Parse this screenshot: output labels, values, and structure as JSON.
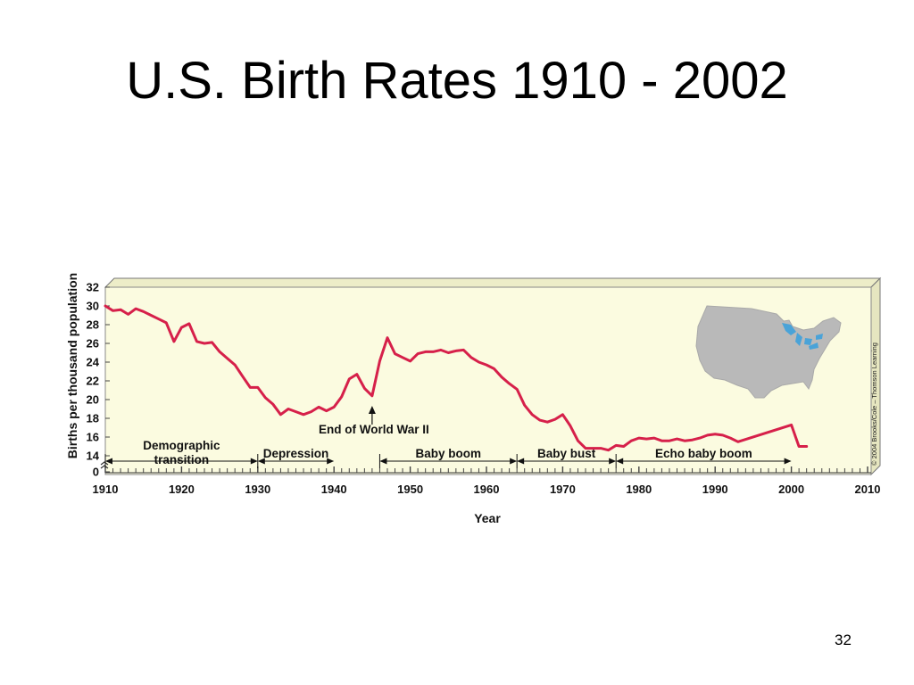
{
  "slide": {
    "title": "U.S. Birth Rates 1910 - 2002",
    "page_number": "32"
  },
  "credit": "© 2004 Brooks/Cole – Thomson Learning",
  "map_icon": "usa-map-icon",
  "colors": {
    "line": "#d6204a",
    "plot_background": "#fbfbe0",
    "map": "#b9b9b9",
    "lakes": "#4aa3d8"
  },
  "chart_data": {
    "type": "line",
    "title": "",
    "xlabel": "Year",
    "ylabel": "Births per thousand population",
    "xlim": [
      1910,
      2010
    ],
    "ylim": [
      0,
      32
    ],
    "y_axis_note": "broken axis between 0 and 14",
    "x_ticks": [
      "1910",
      "1920",
      "1930",
      "1940",
      "1950",
      "1960",
      "1970",
      "1980",
      "1990",
      "2000",
      "2010"
    ],
    "y_ticks": [
      "0",
      "14",
      "16",
      "18",
      "20",
      "22",
      "24",
      "26",
      "28",
      "30",
      "32"
    ],
    "grid": false,
    "series": [
      {
        "x": [
          1910,
          1911,
          1912,
          1913,
          1914,
          1915,
          1916,
          1917,
          1918,
          1919,
          1920,
          1921,
          1922,
          1923,
          1924,
          1925,
          1926,
          1927,
          1928,
          1929,
          1930,
          1931,
          1932,
          1933,
          1934,
          1935,
          1936,
          1937,
          1938,
          1939,
          1940,
          1941,
          1942,
          1943,
          1944,
          1945,
          1946,
          1947,
          1948,
          1949,
          1950,
          1951,
          1952,
          1953,
          1954,
          1955,
          1956,
          1957,
          1958,
          1959,
          1960,
          1961,
          1962,
          1963,
          1964,
          1965,
          1966,
          1967,
          1968,
          1969,
          1970,
          1971,
          1972,
          1973,
          1974,
          1975,
          1976,
          1977,
          1978,
          1979,
          1980,
          1981,
          1982,
          1983,
          1984,
          1985,
          1986,
          1987,
          1988,
          1989,
          1990,
          1991,
          1992,
          1993,
          2000,
          2001,
          2002
        ],
        "y": [
          30.0,
          29.5,
          29.6,
          29.1,
          29.7,
          29.4,
          29.0,
          28.6,
          28.2,
          26.2,
          27.7,
          28.1,
          26.2,
          26.0,
          26.1,
          25.1,
          24.4,
          23.7,
          22.5,
          21.3,
          21.3,
          20.2,
          19.5,
          18.4,
          19.0,
          18.7,
          18.4,
          18.7,
          19.2,
          18.8,
          19.2,
          20.3,
          22.2,
          22.7,
          21.2,
          20.4,
          24.1,
          26.6,
          24.9,
          24.5,
          24.1,
          24.9,
          25.1,
          25.1,
          25.3,
          25.0,
          25.2,
          25.3,
          24.5,
          24.0,
          23.7,
          23.3,
          22.4,
          21.7,
          21.1,
          19.4,
          18.4,
          17.8,
          17.6,
          17.9,
          18.4,
          17.2,
          15.6,
          14.8,
          14.8,
          14.8,
          14.6,
          15.1,
          15.0,
          15.6,
          15.9,
          15.8,
          15.9,
          15.6,
          15.6,
          15.8,
          15.6,
          15.7,
          15.9,
          16.2,
          16.3,
          16.2,
          15.9,
          15.5,
          17.3,
          15.0,
          15.0
        ]
      }
    ],
    "annotations": [
      {
        "label": "Demographic\ntransition",
        "from": 1910,
        "to": 1930
      },
      {
        "label": "Depression",
        "from": 1930,
        "to": 1940
      },
      {
        "label": "Baby boom",
        "from": 1946,
        "to": 1964
      },
      {
        "label": "Baby bust",
        "from": 1964,
        "to": 1977
      },
      {
        "label": "Echo baby boom",
        "from": 1977,
        "to": 2000
      },
      {
        "label": "End of World War II",
        "at": 1945,
        "pointer": "arrow-up"
      }
    ]
  }
}
